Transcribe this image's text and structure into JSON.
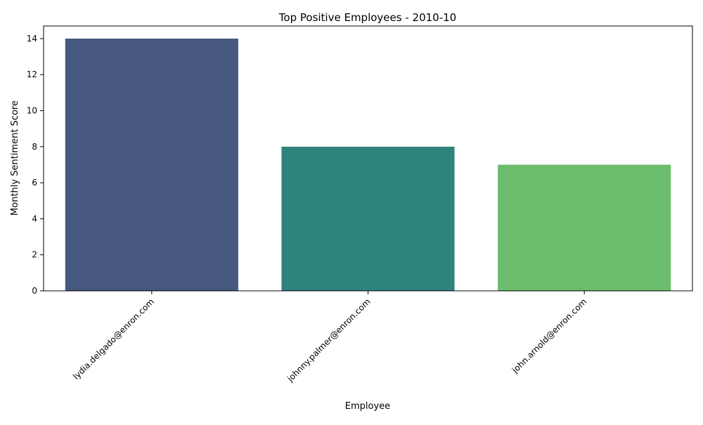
{
  "chart_data": {
    "type": "bar",
    "title": "Top Positive Employees - 2010-10",
    "xlabel": "Employee",
    "ylabel": "Monthly Sentiment Score",
    "categories": [
      "lydia.delgado@enron.com",
      "johnny.palmer@enron.com",
      "john.arnold@enron.com"
    ],
    "values": [
      14,
      8,
      7
    ],
    "colors": [
      "#46587f",
      "#2e837c",
      "#6bbd6d"
    ],
    "ylim": [
      0,
      14.7
    ],
    "yticks": [
      0,
      2,
      4,
      6,
      8,
      10,
      12,
      14
    ],
    "grid": false,
    "legend": "none"
  }
}
